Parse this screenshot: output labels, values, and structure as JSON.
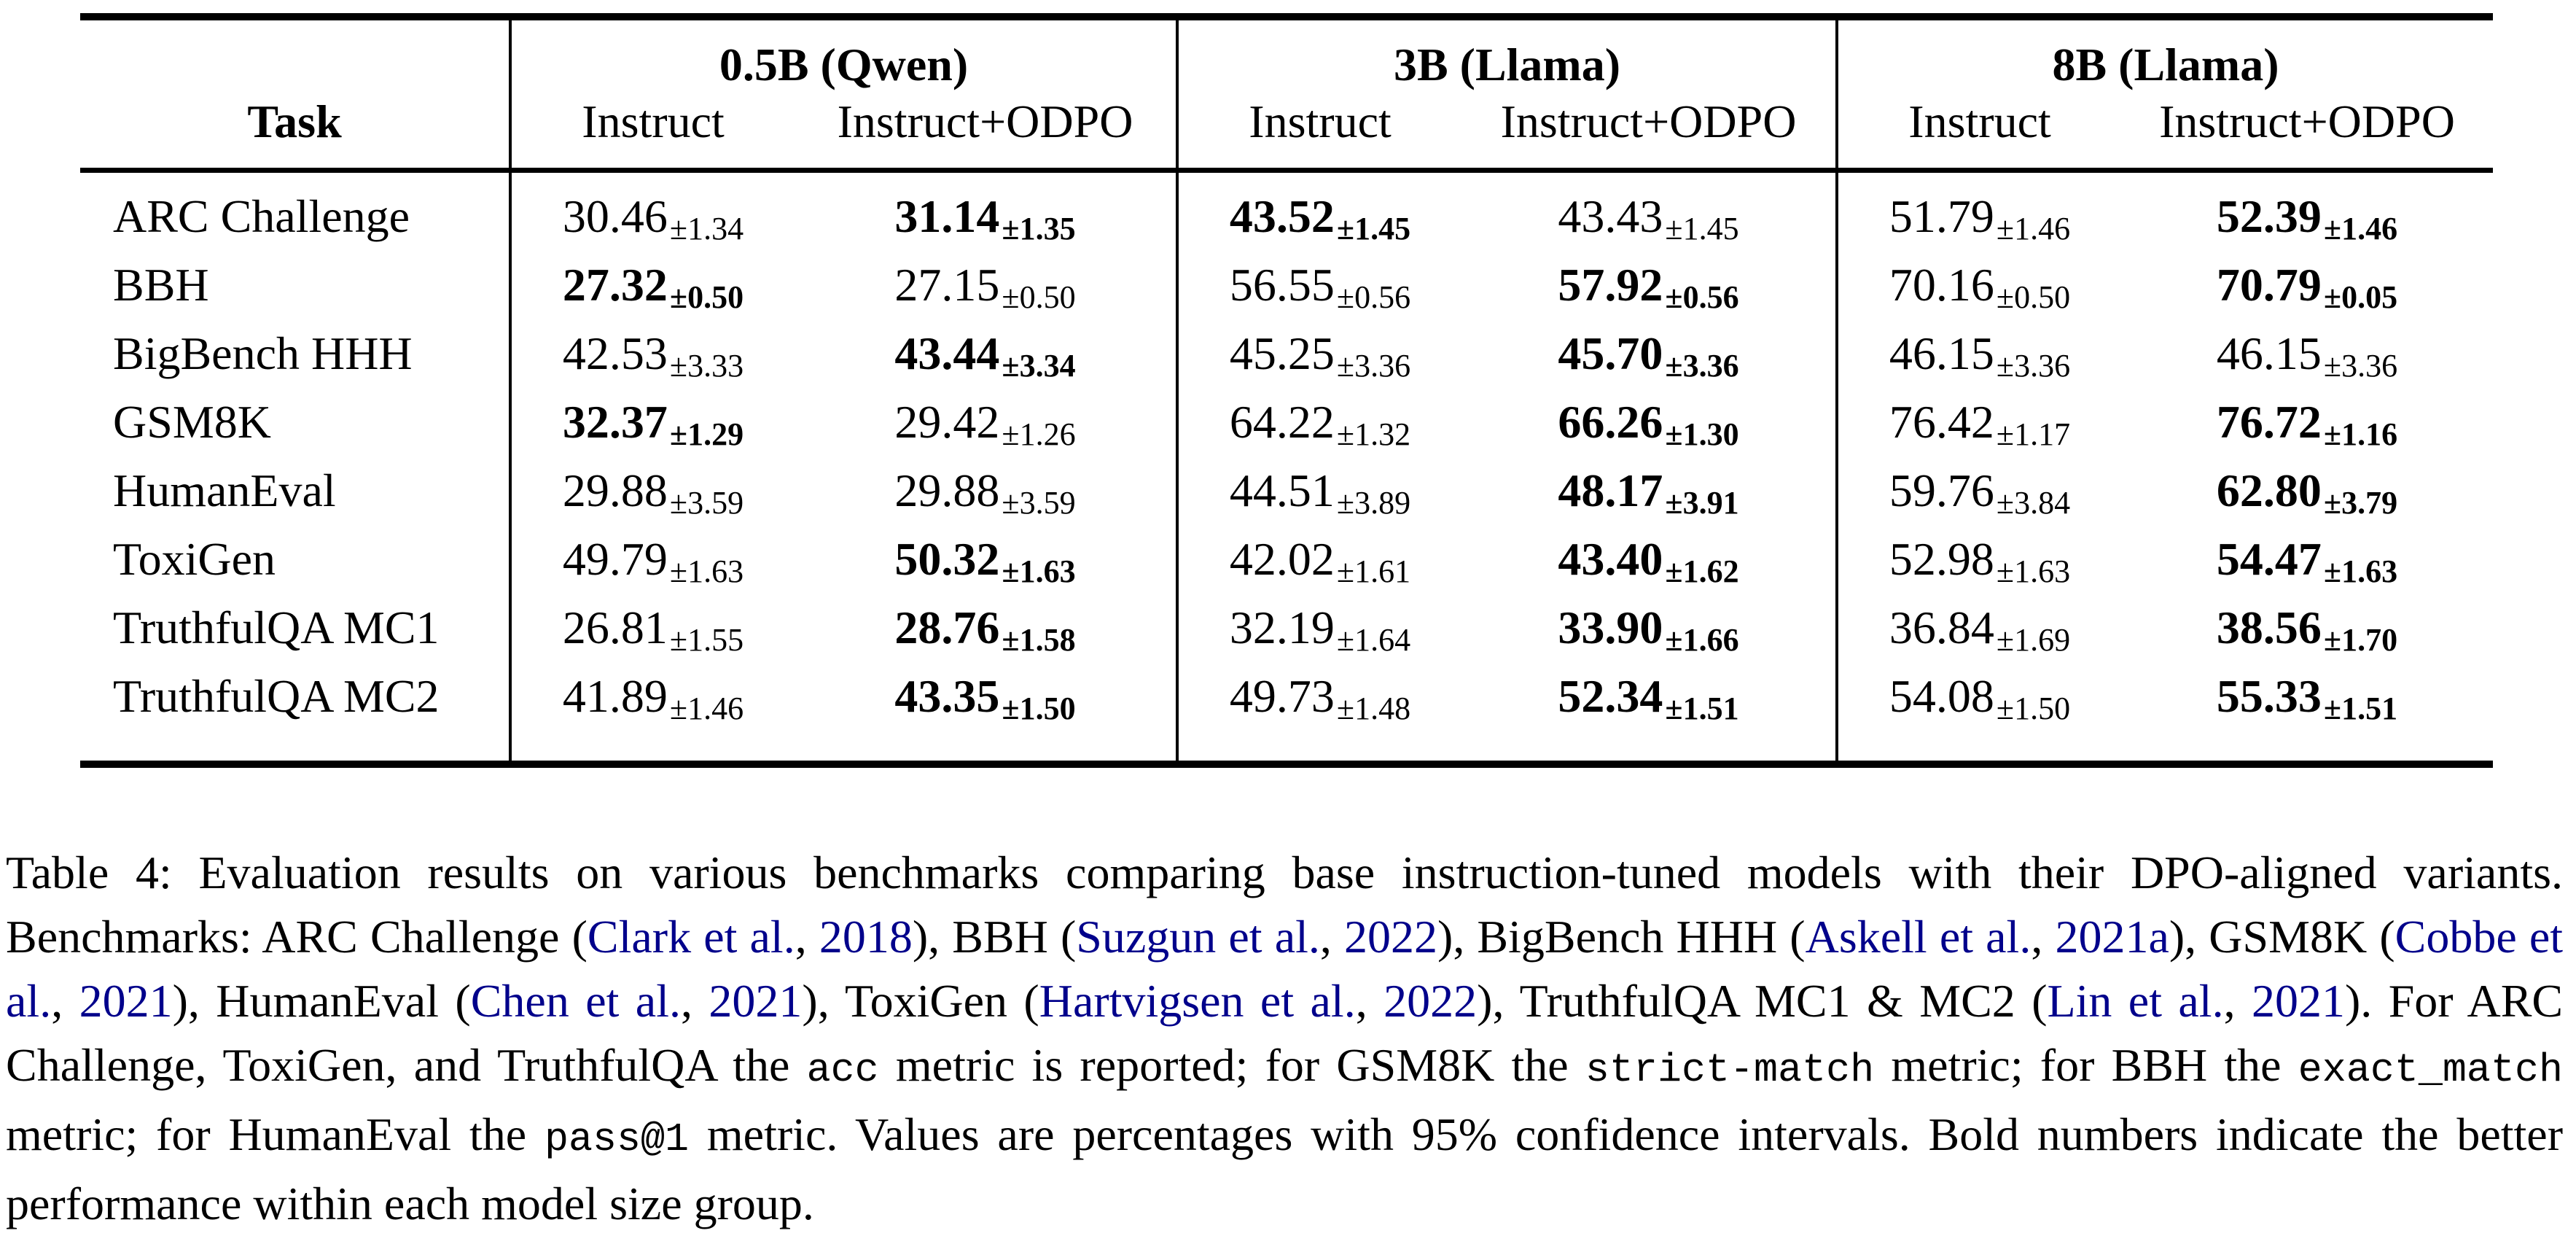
{
  "table": {
    "task_header": "Task",
    "col_groups": [
      {
        "label": "0.5B (Qwen)"
      },
      {
        "label": "3B (Llama)"
      },
      {
        "label": "8B (Llama)"
      }
    ],
    "sub_headers": [
      "Instruct",
      "Instruct+ODPO"
    ],
    "rows": [
      {
        "task": "ARC Challenge",
        "cells": [
          {
            "v": "30.46",
            "e": "±1.34",
            "bold": false
          },
          {
            "v": "31.14",
            "e": "±1.35",
            "bold": true
          },
          {
            "v": "43.52",
            "e": "±1.45",
            "bold": true
          },
          {
            "v": "43.43",
            "e": "±1.45",
            "bold": false
          },
          {
            "v": "51.79",
            "e": "±1.46",
            "bold": false
          },
          {
            "v": "52.39",
            "e": "±1.46",
            "bold": true
          }
        ]
      },
      {
        "task": "BBH",
        "cells": [
          {
            "v": "27.32",
            "e": "±0.50",
            "bold": true
          },
          {
            "v": "27.15",
            "e": "±0.50",
            "bold": false
          },
          {
            "v": "56.55",
            "e": "±0.56",
            "bold": false
          },
          {
            "v": "57.92",
            "e": "±0.56",
            "bold": true
          },
          {
            "v": "70.16",
            "e": "±0.50",
            "bold": false
          },
          {
            "v": "70.79",
            "e": "±0.05",
            "bold": true
          }
        ]
      },
      {
        "task": "BigBench HHH",
        "cells": [
          {
            "v": "42.53",
            "e": "±3.33",
            "bold": false
          },
          {
            "v": "43.44",
            "e": "±3.34",
            "bold": true
          },
          {
            "v": "45.25",
            "e": "±3.36",
            "bold": false
          },
          {
            "v": "45.70",
            "e": "±3.36",
            "bold": true
          },
          {
            "v": "46.15",
            "e": "±3.36",
            "bold": false
          },
          {
            "v": "46.15",
            "e": "±3.36",
            "bold": false
          }
        ]
      },
      {
        "task": "GSM8K",
        "cells": [
          {
            "v": "32.37",
            "e": "±1.29",
            "bold": true
          },
          {
            "v": "29.42",
            "e": "±1.26",
            "bold": false
          },
          {
            "v": "64.22",
            "e": "±1.32",
            "bold": false
          },
          {
            "v": "66.26",
            "e": "±1.30",
            "bold": true
          },
          {
            "v": "76.42",
            "e": "±1.17",
            "bold": false
          },
          {
            "v": "76.72",
            "e": "±1.16",
            "bold": true
          }
        ]
      },
      {
        "task": "HumanEval",
        "cells": [
          {
            "v": "29.88",
            "e": "±3.59",
            "bold": false
          },
          {
            "v": "29.88",
            "e": "±3.59",
            "bold": false
          },
          {
            "v": "44.51",
            "e": "±3.89",
            "bold": false
          },
          {
            "v": "48.17",
            "e": "±3.91",
            "bold": true
          },
          {
            "v": "59.76",
            "e": "±3.84",
            "bold": false
          },
          {
            "v": "62.80",
            "e": "±3.79",
            "bold": true
          }
        ]
      },
      {
        "task": "ToxiGen",
        "cells": [
          {
            "v": "49.79",
            "e": "±1.63",
            "bold": false
          },
          {
            "v": "50.32",
            "e": "±1.63",
            "bold": true
          },
          {
            "v": "42.02",
            "e": "±1.61",
            "bold": false
          },
          {
            "v": "43.40",
            "e": "±1.62",
            "bold": true
          },
          {
            "v": "52.98",
            "e": "±1.63",
            "bold": false
          },
          {
            "v": "54.47",
            "e": "±1.63",
            "bold": true
          }
        ]
      },
      {
        "task": "TruthfulQA MC1",
        "cells": [
          {
            "v": "26.81",
            "e": "±1.55",
            "bold": false
          },
          {
            "v": "28.76",
            "e": "±1.58",
            "bold": true
          },
          {
            "v": "32.19",
            "e": "±1.64",
            "bold": false
          },
          {
            "v": "33.90",
            "e": "±1.66",
            "bold": true
          },
          {
            "v": "36.84",
            "e": "±1.69",
            "bold": false
          },
          {
            "v": "38.56",
            "e": "±1.70",
            "bold": true
          }
        ]
      },
      {
        "task": "TruthfulQA MC2",
        "cells": [
          {
            "v": "41.89",
            "e": "±1.46",
            "bold": false
          },
          {
            "v": "43.35",
            "e": "±1.50",
            "bold": true
          },
          {
            "v": "49.73",
            "e": "±1.48",
            "bold": false
          },
          {
            "v": "52.34",
            "e": "±1.51",
            "bold": true
          },
          {
            "v": "54.08",
            "e": "±1.50",
            "bold": false
          },
          {
            "v": "55.33",
            "e": "±1.51",
            "bold": true
          }
        ]
      }
    ]
  },
  "caption": {
    "link_color": "#00008B",
    "segments": [
      {
        "text": "Table 4: Evaluation results on various benchmarks comparing base instruction-tuned models with their DPO-aligned variants. Benchmarks: ARC Challenge (",
        "style": "normal"
      },
      {
        "text": "Clark et al.",
        "style": "link"
      },
      {
        "text": ", ",
        "style": "normal"
      },
      {
        "text": "2018",
        "style": "link"
      },
      {
        "text": "), BBH (",
        "style": "normal"
      },
      {
        "text": "Suzgun et al.",
        "style": "link"
      },
      {
        "text": ", ",
        "style": "normal"
      },
      {
        "text": "2022",
        "style": "link"
      },
      {
        "text": "), BigBench HHH (",
        "style": "normal"
      },
      {
        "text": "Askell et al.",
        "style": "link"
      },
      {
        "text": ", ",
        "style": "normal"
      },
      {
        "text": "2021a",
        "style": "link"
      },
      {
        "text": "), GSM8K (",
        "style": "normal"
      },
      {
        "text": "Cobbe et al.",
        "style": "link"
      },
      {
        "text": ", ",
        "style": "normal"
      },
      {
        "text": "2021",
        "style": "link"
      },
      {
        "text": "), HumanEval (",
        "style": "normal"
      },
      {
        "text": "Chen et al.",
        "style": "link"
      },
      {
        "text": ", ",
        "style": "normal"
      },
      {
        "text": "2021",
        "style": "link"
      },
      {
        "text": "), ToxiGen (",
        "style": "normal"
      },
      {
        "text": "Hartvigsen et al.",
        "style": "link"
      },
      {
        "text": ", ",
        "style": "normal"
      },
      {
        "text": "2022",
        "style": "link"
      },
      {
        "text": "), TruthfulQA MC1 & MC2 (",
        "style": "normal"
      },
      {
        "text": "Lin et al.",
        "style": "link"
      },
      {
        "text": ", ",
        "style": "normal"
      },
      {
        "text": "2021",
        "style": "link"
      },
      {
        "text": "). For ARC Challenge, ToxiGen, and TruthfulQA the ",
        "style": "normal"
      },
      {
        "text": "acc",
        "style": "mono"
      },
      {
        "text": " metric is reported; for GSM8K the ",
        "style": "normal"
      },
      {
        "text": "strict-match",
        "style": "mono"
      },
      {
        "text": " metric; for BBH the ",
        "style": "normal"
      },
      {
        "text": "exact_match",
        "style": "mono"
      },
      {
        "text": " metric; for HumanEval the ",
        "style": "normal"
      },
      {
        "text": "pass@1",
        "style": "mono"
      },
      {
        "text": " metric. Values are percentages with 95% confidence intervals. Bold numbers indicate the better performance within each model size group.",
        "style": "normal"
      }
    ]
  }
}
